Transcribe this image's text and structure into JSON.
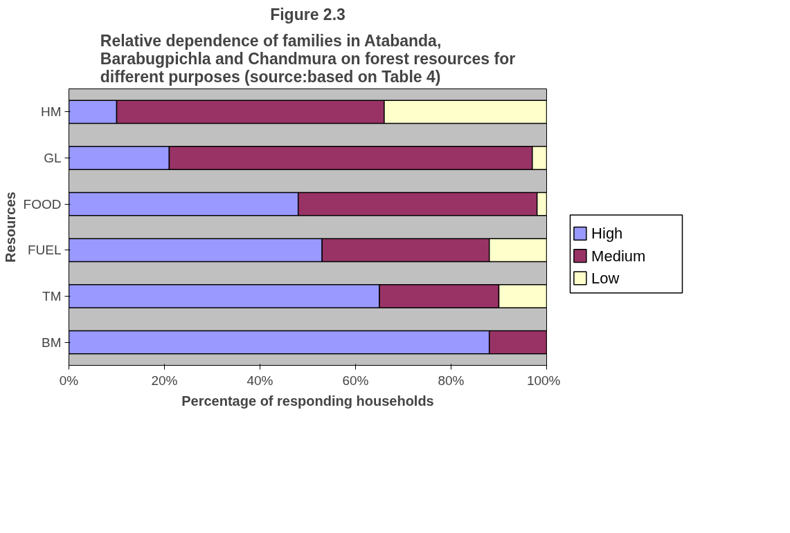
{
  "chart_data": {
    "type": "bar",
    "orientation": "horizontal",
    "stacked": true,
    "title": "Figure 2.3",
    "subtitle": "Relative dependence of families in Atabanda, Barabugpichla and Chandmura on forest resources for different purposes (source:based on Table 4)",
    "xlabel": "Percentage of responding households",
    "ylabel": "Resources",
    "categories": [
      "HM",
      "GL",
      "FOOD",
      "FUEL",
      "TM",
      "BM"
    ],
    "series": [
      {
        "name": "High",
        "color": "#9999ff",
        "values": [
          10,
          21,
          48,
          53,
          65,
          88
        ]
      },
      {
        "name": "Medium",
        "color": "#993366",
        "values": [
          56,
          76,
          50,
          35,
          25,
          12
        ]
      },
      {
        "name": "Low",
        "color": "#ffffcc",
        "values": [
          34,
          3,
          2,
          12,
          10,
          null
        ]
      }
    ],
    "xlim": [
      0,
      100
    ],
    "xticks": [
      {
        "value": 0,
        "label": "0%"
      },
      {
        "value": 20,
        "label": "20%"
      },
      {
        "value": 40,
        "label": "40%"
      },
      {
        "value": 60,
        "label": "60%"
      },
      {
        "value": 80,
        "label": "80%"
      },
      {
        "value": 100,
        "label": "100%"
      }
    ],
    "grid": false,
    "legend": "right"
  }
}
